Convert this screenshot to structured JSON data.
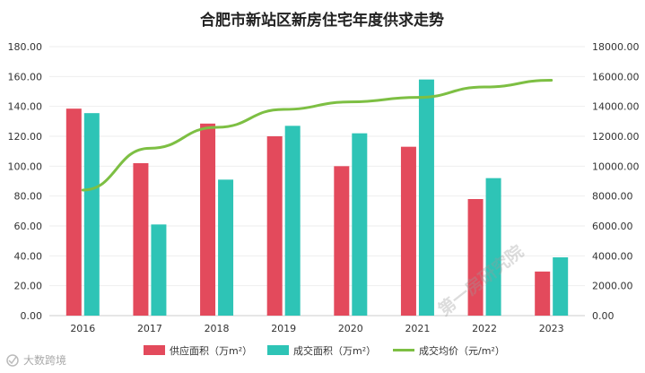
{
  "chart_data": {
    "type": "bar",
    "title": "合肥市新站区新房住宅年度供求走势",
    "categories": [
      "2016",
      "2017",
      "2018",
      "2019",
      "2020",
      "2021",
      "2022",
      "2023"
    ],
    "series": [
      {
        "name": "供应面积（万m²）",
        "type": "bar",
        "axis": "left",
        "color": "#e34a5c",
        "values": [
          138.5,
          102.0,
          128.5,
          120.0,
          100.0,
          113.0,
          78.0,
          29.5
        ]
      },
      {
        "name": "成交面积（万m²）",
        "type": "bar",
        "axis": "left",
        "color": "#2ec4b6",
        "values": [
          135.5,
          61.0,
          91.0,
          127.0,
          122.0,
          158.0,
          92.0,
          39.0
        ]
      },
      {
        "name": "成交均价（元/m²）",
        "type": "line",
        "axis": "right",
        "color": "#7dbf43",
        "values": [
          8400,
          11200,
          12600,
          13800,
          14300,
          14600,
          15300,
          15750
        ]
      }
    ],
    "left_axis": {
      "min": 0,
      "max": 180,
      "step": 20,
      "decimals": 2
    },
    "right_axis": {
      "min": 0,
      "max": 18000,
      "step": 2000,
      "decimals": 2
    },
    "grid": true,
    "legend_position": "bottom"
  },
  "watermark_text": "第一房研究院",
  "source_text": "大数跨境"
}
